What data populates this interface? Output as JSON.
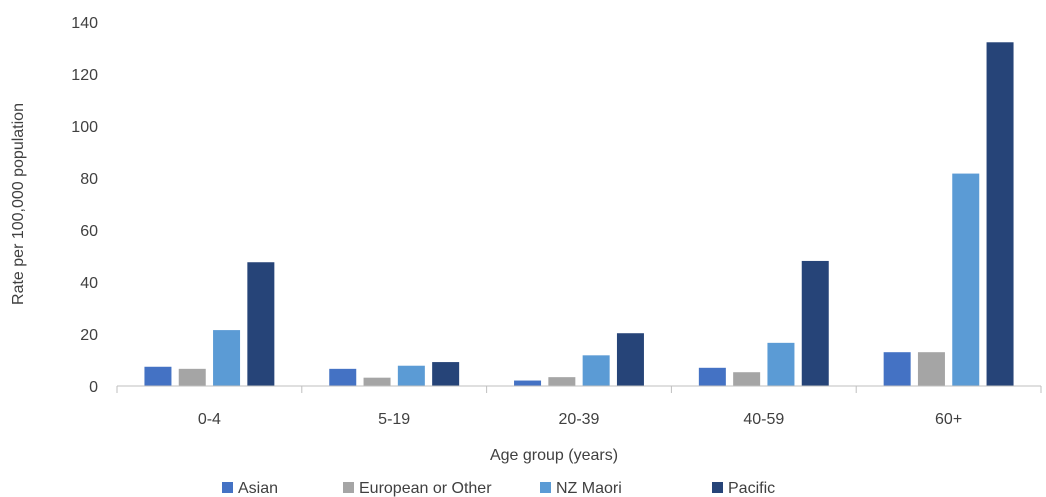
{
  "chart_data": {
    "type": "bar",
    "title": "",
    "xlabel": "Age group (years)",
    "ylabel": "Rate per 100,000 population",
    "ylim": [
      0,
      140
    ],
    "yticks": [
      0,
      20,
      40,
      60,
      80,
      100,
      120,
      140
    ],
    "grid": false,
    "legend_position": "bottom",
    "categories": [
      "0-4",
      "5-19",
      "20-39",
      "40-59",
      "60+"
    ],
    "series": [
      {
        "name": "Asian",
        "color": "#4472c4",
        "values": [
          7.4,
          6.6,
          2.1,
          7.0,
          13.0
        ]
      },
      {
        "name": "European or Other",
        "color": "#a5a5a5",
        "values": [
          6.6,
          3.2,
          3.4,
          5.3,
          13.0
        ]
      },
      {
        "name": "NZ Maori",
        "color": "#5b9bd5",
        "values": [
          21.5,
          7.8,
          11.8,
          16.6,
          81.7
        ]
      },
      {
        "name": "Pacific",
        "color": "#264478",
        "values": [
          47.6,
          9.2,
          20.3,
          48.1,
          132.2
        ]
      }
    ]
  }
}
